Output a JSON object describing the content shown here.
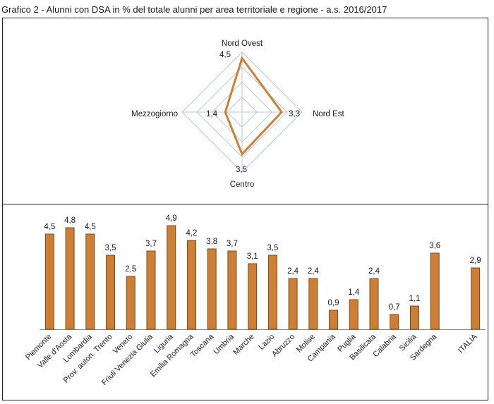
{
  "title": "Grafico 2 - Alunni con DSA in % del totale alunni per area territoriale e regione - a.s. 2016/2017",
  "colors": {
    "accent": "#cd7f35",
    "bar_stroke": "#7a4a1c",
    "grid": "#b9c7dc",
    "frame": "#222222"
  },
  "chart_data": [
    {
      "type": "radar",
      "axes": [
        "Nord Ovest",
        "Nord Est",
        "Centro",
        "Mezzogiorno"
      ],
      "values": [
        4.5,
        3.3,
        3.5,
        1.4
      ],
      "value_labels": [
        "4,5",
        "3,3",
        "3,5",
        "1,4"
      ],
      "rmax": 5,
      "grid_rings": 4
    },
    {
      "type": "bar",
      "categories": [
        "Piemonte",
        "Valle d'Aosta",
        "Lombardia",
        "Prov. auton. Trento",
        "Veneto",
        "Friuli Venezia Giulia",
        "Liguria",
        "Emilia Romagna",
        "Toscana",
        "Umbria",
        "Marche",
        "Lazio",
        "Abruzzo",
        "Molise",
        "Campania",
        "Puglia",
        "Basilicata",
        "Calabria",
        "Sicilia",
        "Sardegna",
        "",
        "ITALIA"
      ],
      "values": [
        4.5,
        4.8,
        4.5,
        3.5,
        2.5,
        3.7,
        4.9,
        4.2,
        3.8,
        3.7,
        3.1,
        3.5,
        2.4,
        2.4,
        0.9,
        1.4,
        2.4,
        0.7,
        1.1,
        3.6,
        null,
        2.9
      ],
      "value_labels": [
        "4,5",
        "4,8",
        "4,5",
        "3,5",
        "2,5",
        "3,7",
        "4,9",
        "4,2",
        "3,8",
        "3,7",
        "3,1",
        "3,5",
        "2,4",
        "2,4",
        "0,9",
        "1,4",
        "2,4",
        "0,7",
        "1,1",
        "3,6",
        "",
        "2,9"
      ],
      "ylim": [
        0,
        5
      ]
    }
  ]
}
